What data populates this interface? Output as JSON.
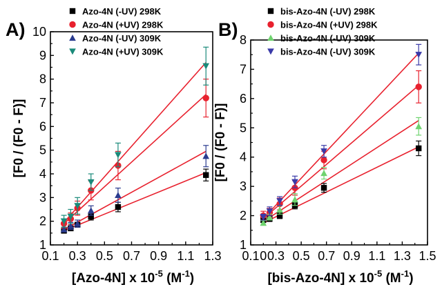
{
  "chart_data": [
    {
      "panel": "A)",
      "type": "scatter",
      "xlabel": "[Azo-4N] x 10",
      "xlabel_sup": "-5",
      "xlabel_unit": " (M",
      "xlabel_unit_sup": "-1",
      "xlabel_end": ")",
      "ylabel": "[F0 / (F0 - F)]",
      "xlim": [
        0.1,
        1.3
      ],
      "ylim": [
        1,
        10
      ],
      "xticks": [
        0.1,
        0.3,
        0.5,
        0.7,
        0.9,
        1.1,
        1.3
      ],
      "xtick_labels": [
        "0.1",
        "0.3",
        "0.5",
        "0.7",
        "0.9",
        "1.1",
        "1.3"
      ],
      "yticks": [
        1,
        2,
        3,
        4,
        5,
        6,
        7,
        8,
        9,
        10
      ],
      "ytick_labels": [
        "1",
        "2",
        "3",
        "4",
        "5",
        "6",
        "7",
        "8",
        "9",
        "10"
      ],
      "legend_position": "top-right",
      "fit_line_color": "#e8212e",
      "series": [
        {
          "name": "Azo-4N (-UV) 298K",
          "marker": "square",
          "color": "#000000",
          "x": [
            0.2,
            0.25,
            0.3,
            0.4,
            0.6,
            1.25
          ],
          "y": [
            1.6,
            1.7,
            1.85,
            2.2,
            2.6,
            3.95
          ],
          "err": [
            0.08,
            0.08,
            0.1,
            0.15,
            0.2,
            0.25
          ]
        },
        {
          "name": "Azo-4N (+UV) 298K",
          "marker": "circle",
          "color": "#e8212e",
          "x": [
            0.2,
            0.25,
            0.3,
            0.4,
            0.6,
            1.25
          ],
          "y": [
            1.9,
            2.1,
            2.55,
            3.3,
            4.35,
            7.2
          ],
          "err": [
            0.2,
            0.25,
            0.3,
            0.4,
            0.6,
            0.8
          ]
        },
        {
          "name": "Azo-4N (-UV) 309K",
          "marker": "triangle-up",
          "color": "#2a3b8f",
          "x": [
            0.2,
            0.25,
            0.3,
            0.4,
            0.6,
            1.25
          ],
          "y": [
            1.65,
            1.8,
            1.9,
            2.45,
            3.1,
            4.75
          ],
          "err": [
            0.1,
            0.15,
            0.15,
            0.2,
            0.3,
            0.45
          ]
        },
        {
          "name": "Azo-4N (+UV) 309K",
          "marker": "triangle-down",
          "color": "#1a8a7a",
          "x": [
            0.2,
            0.25,
            0.3,
            0.4,
            0.6,
            1.25
          ],
          "y": [
            2.0,
            2.2,
            2.65,
            3.65,
            4.8,
            8.55
          ],
          "err": [
            0.25,
            0.3,
            0.35,
            0.35,
            0.5,
            0.8
          ]
        }
      ],
      "fit_lines": [
        {
          "x": [
            0.2,
            1.25
          ],
          "y": [
            1.6,
            4.05
          ]
        },
        {
          "x": [
            0.2,
            1.25
          ],
          "y": [
            1.9,
            7.35
          ]
        },
        {
          "x": [
            0.2,
            1.25
          ],
          "y": [
            1.65,
            4.95
          ]
        },
        {
          "x": [
            0.2,
            1.25
          ],
          "y": [
            1.95,
            8.7
          ]
        }
      ]
    },
    {
      "panel": "B)",
      "type": "scatter",
      "xlabel": "[bis-Azo-4N] x 10",
      "xlabel_sup": "-5",
      "xlabel_unit": " (M",
      "xlabel_unit_sup": "-1",
      "xlabel_end": ")",
      "ylabel": "[F0 / (F0 - F)]",
      "xlim": [
        0.1,
        1.5
      ],
      "ylim": [
        1,
        8
      ],
      "xticks": [
        0.1,
        0.3,
        0.5,
        0.7,
        0.9,
        1.1,
        1.3,
        1.5
      ],
      "xtick_labels": [
        "0.1",
        "0.3",
        "0.5",
        "0.7",
        "0.9",
        "1.1",
        "1.3",
        "1.5"
      ],
      "xtick_extra": [
        {
          "x": 0.2,
          "label": "0"
        }
      ],
      "yticks": [
        1,
        2,
        3,
        4,
        5,
        6,
        7,
        8
      ],
      "ytick_labels": [
        "1",
        "2",
        "3",
        "4",
        "5",
        "6",
        "7",
        "8"
      ],
      "legend_position": "top-right",
      "fit_line_color": "#e8212e",
      "series": [
        {
          "name": "bis-Azo-4N (-UV) 298K",
          "marker": "square",
          "color": "#000000",
          "x": [
            0.2,
            0.25,
            0.33,
            0.45,
            0.68,
            1.43
          ],
          "y": [
            1.85,
            1.9,
            2.0,
            2.35,
            2.95,
            4.3
          ],
          "err": [
            0.08,
            0.1,
            0.1,
            0.12,
            0.15,
            0.25
          ]
        },
        {
          "name": "bis-Azo-4N (+UV) 298K",
          "marker": "circle",
          "color": "#e8212e",
          "x": [
            0.2,
            0.25,
            0.33,
            0.45,
            0.68,
            1.43
          ],
          "y": [
            2.0,
            2.1,
            2.4,
            2.95,
            3.9,
            6.4
          ],
          "err": [
            0.15,
            0.15,
            0.2,
            0.25,
            0.3,
            0.55
          ]
        },
        {
          "name": "bis-Azo-4N (-UV) 309K",
          "marker": "triangle-up",
          "color": "#6fd36f",
          "x": [
            0.2,
            0.25,
            0.33,
            0.45,
            0.68,
            1.43
          ],
          "y": [
            1.75,
            1.95,
            2.2,
            2.55,
            3.45,
            5.05
          ],
          "err": [
            0.08,
            0.1,
            0.15,
            0.2,
            0.2,
            0.3
          ]
        },
        {
          "name": "bis-Azo-4N (-UV) 309K",
          "marker": "triangle-down",
          "color": "#3a3aa8",
          "x": [
            0.2,
            0.25,
            0.33,
            0.45,
            0.68,
            1.43
          ],
          "y": [
            1.95,
            2.15,
            2.5,
            3.15,
            4.2,
            7.5
          ],
          "err": [
            0.1,
            0.15,
            0.15,
            0.2,
            0.2,
            0.35
          ]
        }
      ],
      "fit_lines": [
        {
          "x": [
            0.2,
            1.43
          ],
          "y": [
            1.75,
            4.35
          ]
        },
        {
          "x": [
            0.2,
            1.43
          ],
          "y": [
            1.9,
            6.45
          ]
        },
        {
          "x": [
            0.2,
            1.43
          ],
          "y": [
            1.8,
            5.25
          ]
        },
        {
          "x": [
            0.2,
            1.43
          ],
          "y": [
            1.9,
            7.55
          ]
        }
      ]
    }
  ]
}
